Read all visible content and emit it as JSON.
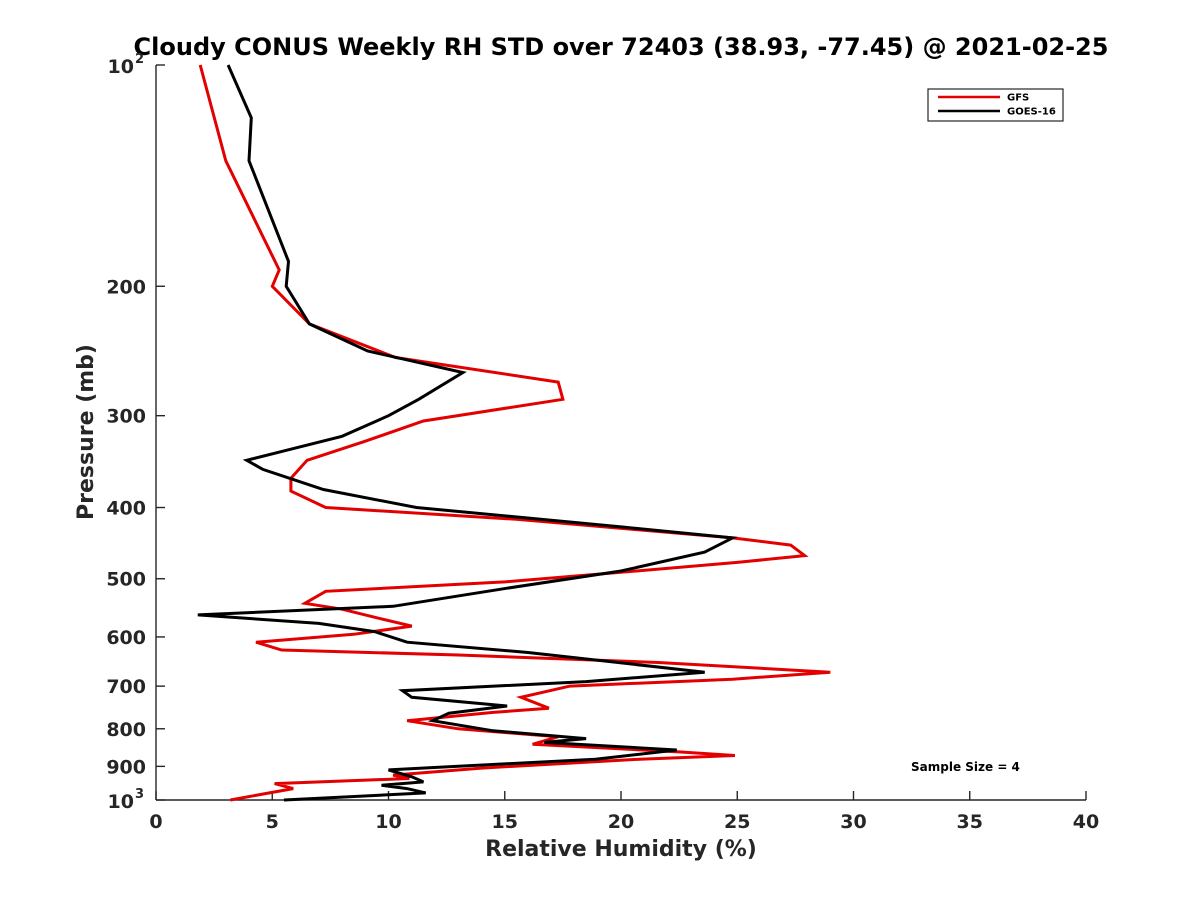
{
  "chart_data": {
    "type": "line",
    "title": "Cloudy CONUS Weekly RH STD over 72403 (38.93, -77.45) @ 2021-02-25",
    "xlabel": "Relative Humidity (%)",
    "ylabel": "Pressure (mb)",
    "xlim": [
      0,
      40
    ],
    "ylim": [
      100,
      1000
    ],
    "y_scale": "log",
    "y_reversed": true,
    "grid": false,
    "legend_position": "top-right",
    "x_ticks": [
      "0",
      "5",
      "10",
      "15",
      "20",
      "25",
      "30",
      "35",
      "40"
    ],
    "y_ticks": [
      {
        "value": 100,
        "base": "10",
        "exp": "2"
      },
      {
        "value": 200,
        "label": "200"
      },
      {
        "value": 300,
        "label": "300"
      },
      {
        "value": 400,
        "label": "400"
      },
      {
        "value": 500,
        "label": "500"
      },
      {
        "value": 600,
        "label": "600"
      },
      {
        "value": 700,
        "label": "700"
      },
      {
        "value": 800,
        "label": "800"
      },
      {
        "value": 900,
        "label": "900"
      },
      {
        "value": 1000,
        "base": "10",
        "exp": "3"
      }
    ],
    "annotation": "Sample Size = 4",
    "series": [
      {
        "name": "GFS",
        "color": "#e30000",
        "points": [
          [
            1.9,
            100
          ],
          [
            3.0,
            135
          ],
          [
            5.3,
            190
          ],
          [
            5.0,
            200
          ],
          [
            6.6,
            225
          ],
          [
            10.3,
            250
          ],
          [
            17.3,
            270
          ],
          [
            17.5,
            285
          ],
          [
            11.5,
            305
          ],
          [
            9.0,
            325
          ],
          [
            6.5,
            345
          ],
          [
            5.8,
            365
          ],
          [
            5.8,
            380
          ],
          [
            7.3,
            400
          ],
          [
            15.5,
            415
          ],
          [
            24.8,
            440
          ],
          [
            27.3,
            450
          ],
          [
            27.9,
            465
          ],
          [
            25.0,
            475
          ],
          [
            20.0,
            490
          ],
          [
            15.0,
            505
          ],
          [
            7.3,
            520
          ],
          [
            6.4,
            540
          ],
          [
            8.0,
            550
          ],
          [
            9.5,
            565
          ],
          [
            11.0,
            580
          ],
          [
            8.5,
            595
          ],
          [
            4.3,
            610
          ],
          [
            5.4,
            625
          ],
          [
            13.0,
            635
          ],
          [
            21.6,
            650
          ],
          [
            29.0,
            670
          ],
          [
            24.8,
            685
          ],
          [
            17.8,
            700
          ],
          [
            15.7,
            725
          ],
          [
            16.9,
            750
          ],
          [
            14.5,
            760
          ],
          [
            10.8,
            780
          ],
          [
            13.0,
            800
          ],
          [
            17.3,
            820
          ],
          [
            16.2,
            840
          ],
          [
            22.5,
            860
          ],
          [
            24.9,
            870
          ],
          [
            20.8,
            880
          ],
          [
            14.0,
            905
          ],
          [
            10.2,
            925
          ],
          [
            10.9,
            935
          ],
          [
            5.1,
            950
          ],
          [
            5.9,
            965
          ],
          [
            4.7,
            980
          ],
          [
            3.2,
            1000
          ]
        ]
      },
      {
        "name": "GOES-16",
        "color": "#000000",
        "points": [
          [
            3.1,
            100
          ],
          [
            4.1,
            118
          ],
          [
            4.0,
            135
          ],
          [
            5.7,
            185
          ],
          [
            5.6,
            200
          ],
          [
            6.6,
            225
          ],
          [
            9.1,
            245
          ],
          [
            13.2,
            262
          ],
          [
            11.3,
            285
          ],
          [
            10.0,
            300
          ],
          [
            8.0,
            320
          ],
          [
            5.5,
            335
          ],
          [
            3.9,
            345
          ],
          [
            4.6,
            355
          ],
          [
            7.2,
            378
          ],
          [
            11.2,
            400
          ],
          [
            20.0,
            425
          ],
          [
            24.8,
            440
          ],
          [
            23.6,
            460
          ],
          [
            20.0,
            488
          ],
          [
            15.1,
            515
          ],
          [
            10.2,
            545
          ],
          [
            1.8,
            560
          ],
          [
            7.0,
            575
          ],
          [
            9.4,
            590
          ],
          [
            10.8,
            610
          ],
          [
            16.0,
            630
          ],
          [
            23.6,
            670
          ],
          [
            18.5,
            690
          ],
          [
            10.6,
            710
          ],
          [
            11.0,
            725
          ],
          [
            15.1,
            745
          ],
          [
            12.6,
            762
          ],
          [
            11.9,
            780
          ],
          [
            14.5,
            805
          ],
          [
            18.5,
            825
          ],
          [
            16.7,
            835
          ],
          [
            22.4,
            855
          ],
          [
            18.9,
            880
          ],
          [
            10.0,
            910
          ],
          [
            11.0,
            930
          ],
          [
            11.5,
            945
          ],
          [
            9.7,
            955
          ],
          [
            10.8,
            965
          ],
          [
            11.6,
            978
          ],
          [
            5.5,
            1000
          ]
        ]
      }
    ]
  }
}
